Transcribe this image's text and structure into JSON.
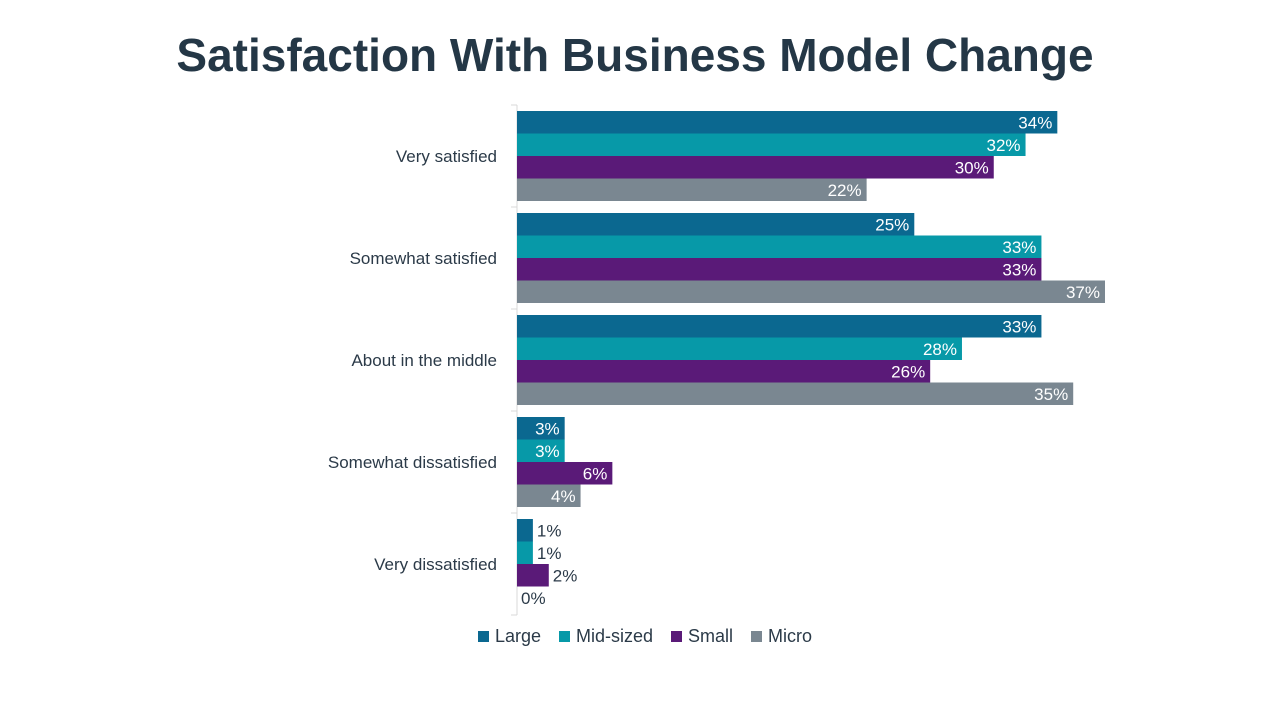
{
  "chart_data": {
    "type": "bar",
    "orientation": "horizontal",
    "title": "Satisfaction With Business Model Change",
    "xlabel": "",
    "ylabel": "",
    "xlim": [
      0,
      37
    ],
    "categories": [
      "Very satisfied",
      "Somewhat satisfied",
      "About in the middle",
      "Somewhat dissatisfied",
      "Very dissatisfied"
    ],
    "series": [
      {
        "name": "Large",
        "color": "#0b6890",
        "values": [
          34,
          25,
          33,
          3,
          1
        ]
      },
      {
        "name": "Mid-sized",
        "color": "#0799a8",
        "values": [
          32,
          33,
          28,
          3,
          1
        ]
      },
      {
        "name": "Small",
        "color": "#5a1a78",
        "values": [
          30,
          33,
          26,
          6,
          2
        ]
      },
      {
        "name": "Micro",
        "color": "#7a8791",
        "values": [
          22,
          37,
          35,
          4,
          0
        ]
      }
    ],
    "value_suffix": "%",
    "legend_position": "bottom",
    "grid": false
  }
}
